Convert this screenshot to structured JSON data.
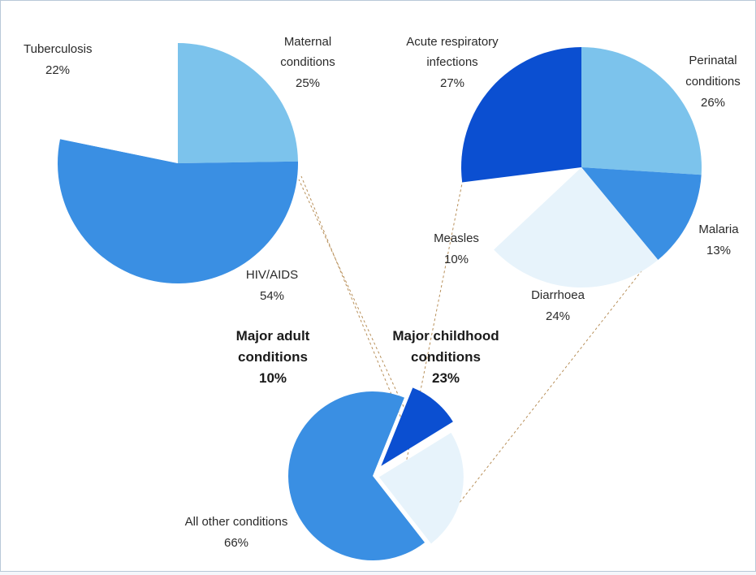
{
  "chart_data": [
    {
      "type": "pie",
      "slices": [
        {
          "label": "Maternal conditions",
          "value": 25,
          "value_label": "25%",
          "color": "#7cc3ec"
        },
        {
          "label": "HIV/AIDS",
          "value": 54,
          "value_label": "54%",
          "color": "#3a8fe3"
        },
        {
          "label": "Tuberculosis",
          "value": 22,
          "value_label": "22%",
          "color": "#ffffff"
        }
      ]
    },
    {
      "type": "pie",
      "slices": [
        {
          "label": "Perinatal conditions",
          "value": 26,
          "value_label": "26%",
          "color": "#7cc3ec"
        },
        {
          "label": "Malaria",
          "value": 13,
          "value_label": "13%",
          "color": "#3a8fe3"
        },
        {
          "label": "Diarrhoea",
          "value": 24,
          "value_label": "24%",
          "color": "#e7f3fb"
        },
        {
          "label": "Measles",
          "value": 10,
          "value_label": "10%",
          "color": "#ffffff"
        },
        {
          "label": "Acute respiratory infections",
          "value": 27,
          "value_label": "27%",
          "color": "#0b4fd1"
        }
      ]
    },
    {
      "type": "pie",
      "slices": [
        {
          "label": "Major adult conditions",
          "value": 10,
          "value_label": "10%",
          "color": "#0b4fd1"
        },
        {
          "label": "Major childhood conditions",
          "value": 23,
          "value_label": "23%",
          "color": "#e7f3fb"
        },
        {
          "label": "All other conditions",
          "value": 66,
          "value_label": "66%",
          "color": "#3a8fe3"
        }
      ]
    }
  ],
  "labels": {
    "tuberculosis": {
      "name": "Tuberculosis",
      "pct": "22%"
    },
    "maternal": {
      "line1": "Maternal",
      "line2": "conditions",
      "pct": "25%"
    },
    "hiv": {
      "name": "HIV/AIDS",
      "pct": "54%"
    },
    "ari": {
      "line1": "Acute respiratory",
      "line2": "infections",
      "pct": "27%"
    },
    "perinatal": {
      "line1": "Perinatal",
      "line2": "conditions",
      "pct": "26%"
    },
    "malaria": {
      "name": "Malaria",
      "pct": "13%"
    },
    "measles": {
      "name": "Measles",
      "pct": "10%"
    },
    "diarrhoea": {
      "name": "Diarrhoea",
      "pct": "24%"
    },
    "adult": {
      "line1": "Major adult",
      "line2": "conditions",
      "pct": "10%"
    },
    "childhood": {
      "line1": "Major childhood",
      "line2": "conditions",
      "pct": "23%"
    },
    "other": {
      "name": "All other conditions",
      "pct": "66%"
    }
  }
}
